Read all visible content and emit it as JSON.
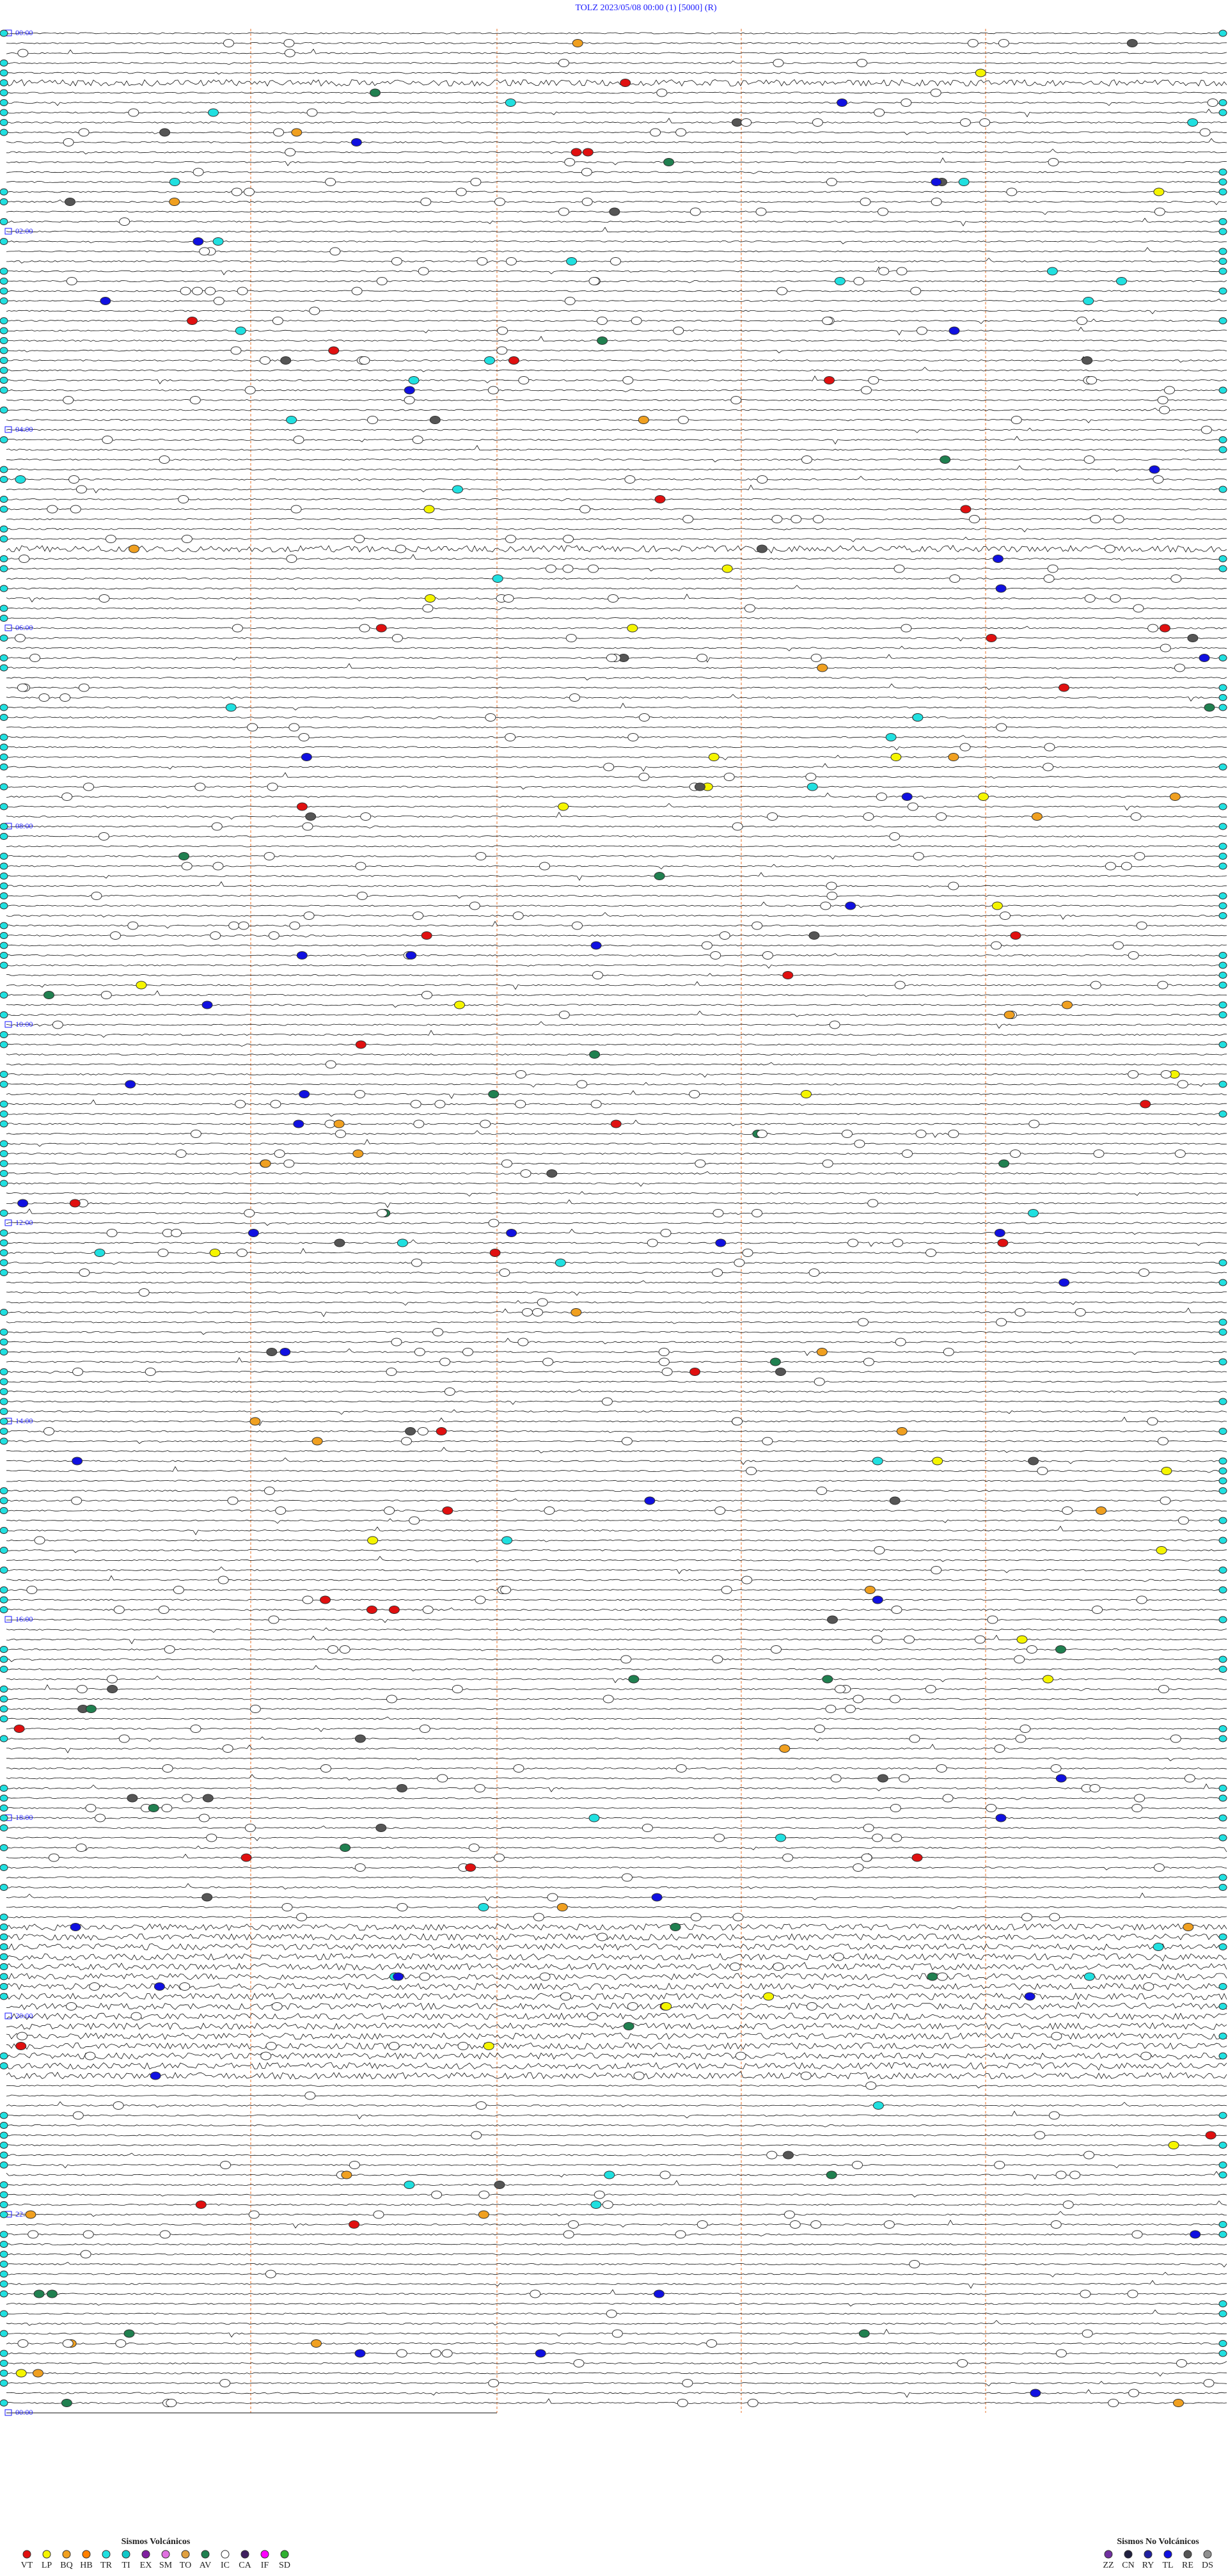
{
  "header": {
    "title": "TOLZ    2023/05/08 00:00    (1)    [5000]    (R)"
  },
  "hour_labels": [
    "00:00",
    "02:00",
    "04:00",
    "06:00",
    "08:00",
    "10:00",
    "12:00",
    "14:00",
    "16:00",
    "18:00",
    "20:00",
    "22:00",
    "00:00"
  ],
  "legend": {
    "volcanic": {
      "title": "Sismos Volcánicos",
      "items": [
        {
          "code": "VT",
          "color": "#e01010"
        },
        {
          "code": "LP",
          "color": "#f5f500"
        },
        {
          "code": "BQ",
          "color": "#f0a020"
        },
        {
          "code": "HB",
          "color": "#ff8000"
        },
        {
          "code": "TR",
          "color": "#20e0e0"
        },
        {
          "code": "TI",
          "color": "#10c8c8"
        },
        {
          "code": "EX",
          "color": "#8020a0"
        },
        {
          "code": "SM",
          "color": "#e070e0"
        },
        {
          "code": "TO",
          "color": "#e0a040"
        },
        {
          "code": "AV",
          "color": "#208050"
        },
        {
          "code": "IC",
          "color": "#ffffff"
        },
        {
          "code": "CA",
          "color": "#402060"
        },
        {
          "code": "IF",
          "color": "#ff00ff"
        },
        {
          "code": "SD",
          "color": "#30b030"
        }
      ]
    },
    "non_volcanic": {
      "title": "Sismos No Volcánicos",
      "items": [
        {
          "code": "ZZ",
          "color": "#7030a0"
        },
        {
          "code": "CN",
          "color": "#202040"
        },
        {
          "code": "RY",
          "color": "#2020a0"
        },
        {
          "code": "TL",
          "color": "#1010e0"
        },
        {
          "code": "RE",
          "color": "#555555"
        },
        {
          "code": "DS",
          "color": "#909090"
        }
      ]
    }
  }
}
